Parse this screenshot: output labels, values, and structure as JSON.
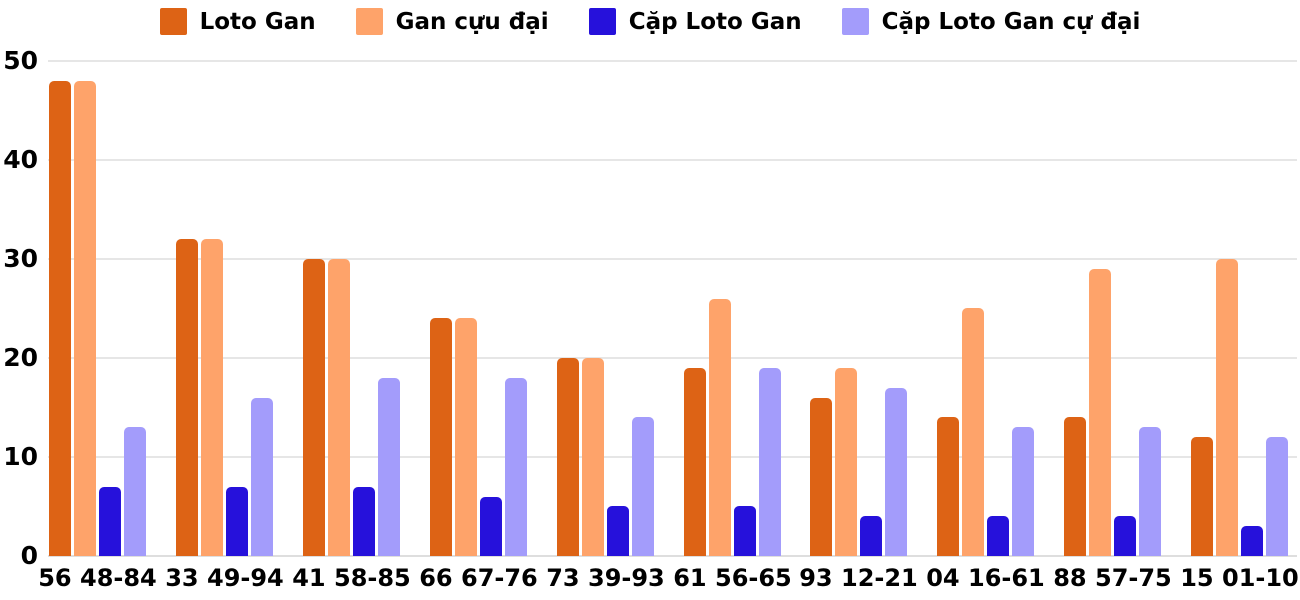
{
  "chart_data": {
    "type": "bar",
    "title": "",
    "xlabel": "",
    "ylabel": "",
    "categories": [
      "56 48-84",
      "33 49-94",
      "41 58-85",
      "66 67-76",
      "73 39-93",
      "61 56-65",
      "93 12-21",
      "04 16-61",
      "88 57-75",
      "15 01-10"
    ],
    "series": [
      {
        "name": "Loto Gan",
        "color": "#DD6315",
        "values": [
          48,
          32,
          30,
          24,
          20,
          19,
          16,
          14,
          14,
          12
        ]
      },
      {
        "name": "Gan cựu đại",
        "color": "#FEA36A",
        "values": [
          48,
          32,
          30,
          24,
          20,
          26,
          19,
          25,
          29,
          30
        ]
      },
      {
        "name": "Cặp Loto Gan",
        "color": "#2611DB",
        "values": [
          7,
          7,
          7,
          6,
          5,
          5,
          4,
          4,
          4,
          3
        ]
      },
      {
        "name": "Cặp Loto Gan cự đại",
        "color": "#A39CFB",
        "values": [
          13,
          16,
          18,
          18,
          14,
          19,
          17,
          13,
          13,
          12
        ]
      }
    ],
    "ylim": [
      0,
      50
    ],
    "yticks": [
      0,
      10,
      20,
      30,
      40,
      50
    ],
    "grid": true,
    "legend_position": "top"
  },
  "colors": {
    "background": "#FFFFFF",
    "gridline": "#E6E6E6",
    "baseline": "#DEDEDE",
    "axis_text": "#000000"
  }
}
